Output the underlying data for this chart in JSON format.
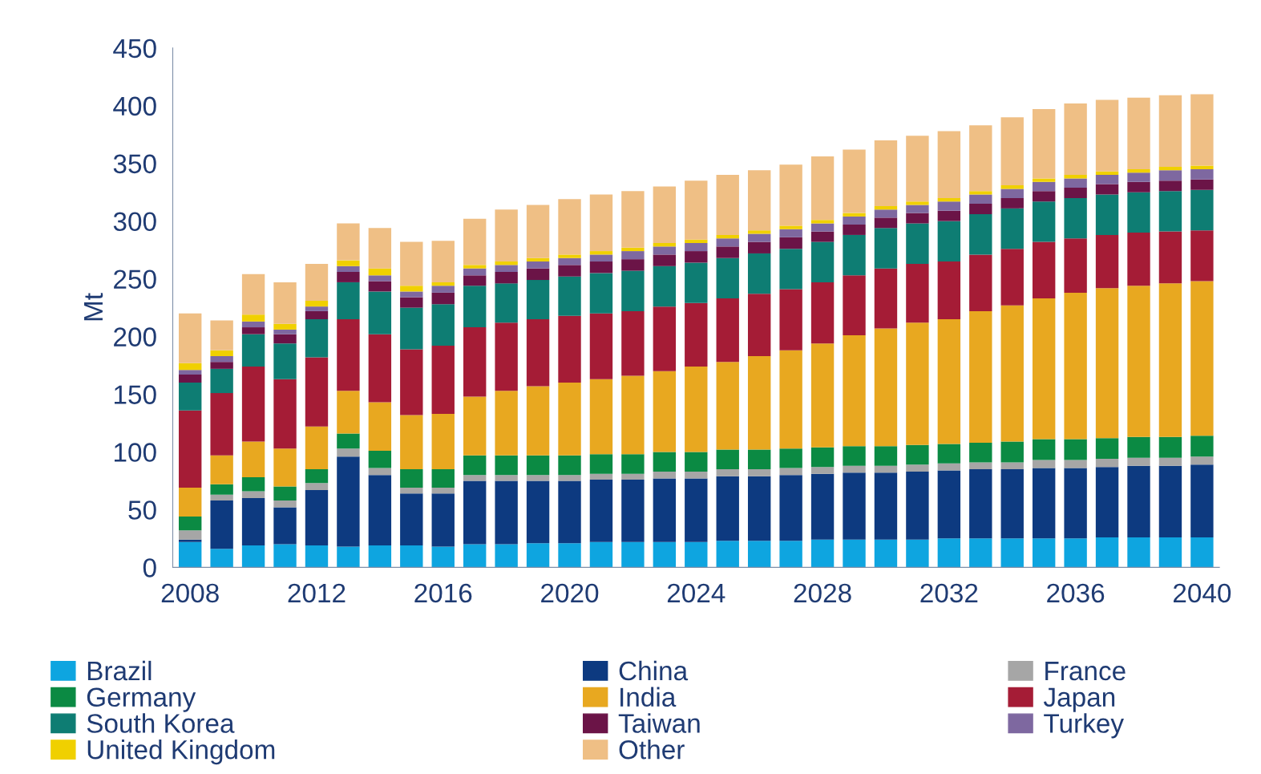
{
  "chart_data": {
    "type": "bar",
    "stacked": true,
    "ylabel": "Mt",
    "categories": [
      "2008",
      null,
      null,
      null,
      "2012",
      null,
      null,
      null,
      "2016",
      null,
      null,
      null,
      "2020",
      null,
      null,
      null,
      "2024",
      null,
      null,
      null,
      "2028",
      null,
      null,
      null,
      "2032",
      null,
      null,
      null,
      "2036",
      null,
      null,
      null,
      "2040"
    ],
    "ylim": [
      0,
      450
    ],
    "yticks": [
      0,
      50,
      100,
      150,
      200,
      250,
      300,
      350,
      400,
      450
    ],
    "grid": false,
    "legend": "bottom",
    "series": [
      {
        "name": "Brazil",
        "color": "#0ea5e0",
        "values": [
          22,
          16,
          19,
          20,
          19,
          18,
          19,
          19,
          18,
          20,
          20,
          21,
          21,
          22,
          22,
          22,
          22,
          23,
          23,
          23,
          24,
          24,
          24,
          24,
          25,
          25,
          25,
          25,
          25,
          26,
          26,
          26,
          26
        ]
      },
      {
        "name": "China",
        "color": "#0d3a80",
        "values": [
          2,
          42,
          41,
          32,
          48,
          78,
          61,
          45,
          46,
          55,
          55,
          54,
          54,
          54,
          54,
          55,
          55,
          56,
          56,
          57,
          57,
          58,
          58,
          59,
          59,
          60,
          60,
          61,
          61,
          61,
          62,
          62,
          63
        ]
      },
      {
        "name": "France",
        "color": "#a6a6a6",
        "values": [
          8,
          5,
          6,
          6,
          6,
          7,
          6,
          5,
          5,
          5,
          5,
          5,
          5,
          5,
          5,
          6,
          6,
          6,
          6,
          6,
          6,
          6,
          6,
          6,
          6,
          6,
          6,
          7,
          7,
          7,
          7,
          7,
          7
        ]
      },
      {
        "name": "Germany",
        "color": "#0b8a43",
        "values": [
          12,
          9,
          12,
          12,
          12,
          13,
          15,
          16,
          16,
          17,
          17,
          17,
          17,
          17,
          17,
          17,
          17,
          17,
          17,
          17,
          17,
          17,
          17,
          17,
          17,
          17,
          18,
          18,
          18,
          18,
          18,
          18,
          18
        ]
      },
      {
        "name": "India",
        "color": "#e8a820",
        "values": [
          25,
          25,
          31,
          33,
          37,
          37,
          42,
          47,
          48,
          51,
          56,
          60,
          63,
          65,
          68,
          70,
          74,
          76,
          81,
          85,
          90,
          96,
          102,
          106,
          108,
          114,
          118,
          122,
          127,
          130,
          131,
          133,
          134
        ]
      },
      {
        "name": "Japan",
        "color": "#a51c36",
        "values": [
          67,
          54,
          65,
          60,
          60,
          62,
          59,
          57,
          59,
          60,
          59,
          58,
          58,
          57,
          56,
          56,
          55,
          55,
          54,
          53,
          53,
          52,
          52,
          51,
          50,
          49,
          49,
          49,
          47,
          46,
          46,
          45,
          44
        ]
      },
      {
        "name": "South Korea",
        "color": "#0e7d73",
        "values": [
          24,
          21,
          28,
          31,
          33,
          32,
          37,
          36,
          36,
          36,
          34,
          34,
          34,
          35,
          35,
          35,
          35,
          35,
          35,
          35,
          35,
          35,
          35,
          35,
          35,
          35,
          35,
          35,
          35,
          35,
          35,
          35,
          35
        ]
      },
      {
        "name": "Taiwan",
        "color": "#6b1447",
        "values": [
          7,
          6,
          6,
          8,
          7,
          9,
          9,
          9,
          10,
          9,
          10,
          10,
          10,
          10,
          10,
          10,
          10,
          10,
          10,
          10,
          9,
          9,
          9,
          9,
          9,
          9,
          9,
          9,
          9,
          9,
          9,
          9,
          9
        ]
      },
      {
        "name": "Turkey",
        "color": "#7e68a0",
        "values": [
          4,
          5,
          5,
          4,
          4,
          5,
          5,
          5,
          6,
          6,
          6,
          6,
          6,
          6,
          7,
          7,
          7,
          7,
          7,
          7,
          7,
          7,
          7,
          7,
          8,
          8,
          8,
          8,
          8,
          8,
          8,
          9,
          9
        ]
      },
      {
        "name": "United Kingdom",
        "color": "#f0d000",
        "values": [
          6,
          5,
          6,
          5,
          5,
          5,
          6,
          5,
          3,
          3,
          3,
          3,
          3,
          3,
          3,
          3,
          3,
          3,
          3,
          3,
          3,
          3,
          3,
          3,
          3,
          3,
          3,
          3,
          3,
          3,
          3,
          3,
          3
        ]
      },
      {
        "name": "Other",
        "color": "#efbf85",
        "values": [
          43,
          26,
          35,
          36,
          32,
          32,
          35,
          38,
          36,
          40,
          45,
          46,
          48,
          49,
          49,
          49,
          51,
          52,
          52,
          53,
          55,
          55,
          57,
          57,
          58,
          57,
          59,
          60,
          62,
          62,
          62,
          62,
          62
        ]
      }
    ]
  }
}
